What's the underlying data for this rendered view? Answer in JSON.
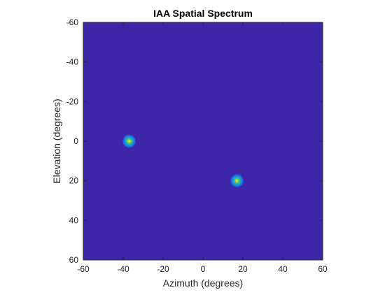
{
  "chart_data": {
    "type": "heatmap",
    "title": "IAA Spatial Spectrum",
    "xlabel": "Azimuth (degrees)",
    "ylabel": "Elevation (degrees)",
    "xlim": [
      -60,
      60
    ],
    "ylim": [
      -60,
      60
    ],
    "y_direction": "reversed (increasing downward)",
    "x_ticks": [
      -60,
      -40,
      -20,
      0,
      20,
      40,
      60
    ],
    "y_ticks": [
      -60,
      -40,
      -20,
      0,
      20,
      40,
      60
    ],
    "x_tick_labels": [
      "-60",
      "-40",
      "-20",
      "0",
      "20",
      "40",
      "60"
    ],
    "y_tick_labels": [
      "-60",
      "-40",
      "-20",
      "0",
      "20",
      "40",
      "60"
    ],
    "colormap": "parula",
    "background_color": "#3d26a8",
    "peaks": [
      {
        "azimuth": -37,
        "elevation": 0,
        "intensity": 1.0
      },
      {
        "azimuth": 17,
        "elevation": 20,
        "intensity": 1.0
      }
    ],
    "grid": false,
    "legend": "none"
  }
}
